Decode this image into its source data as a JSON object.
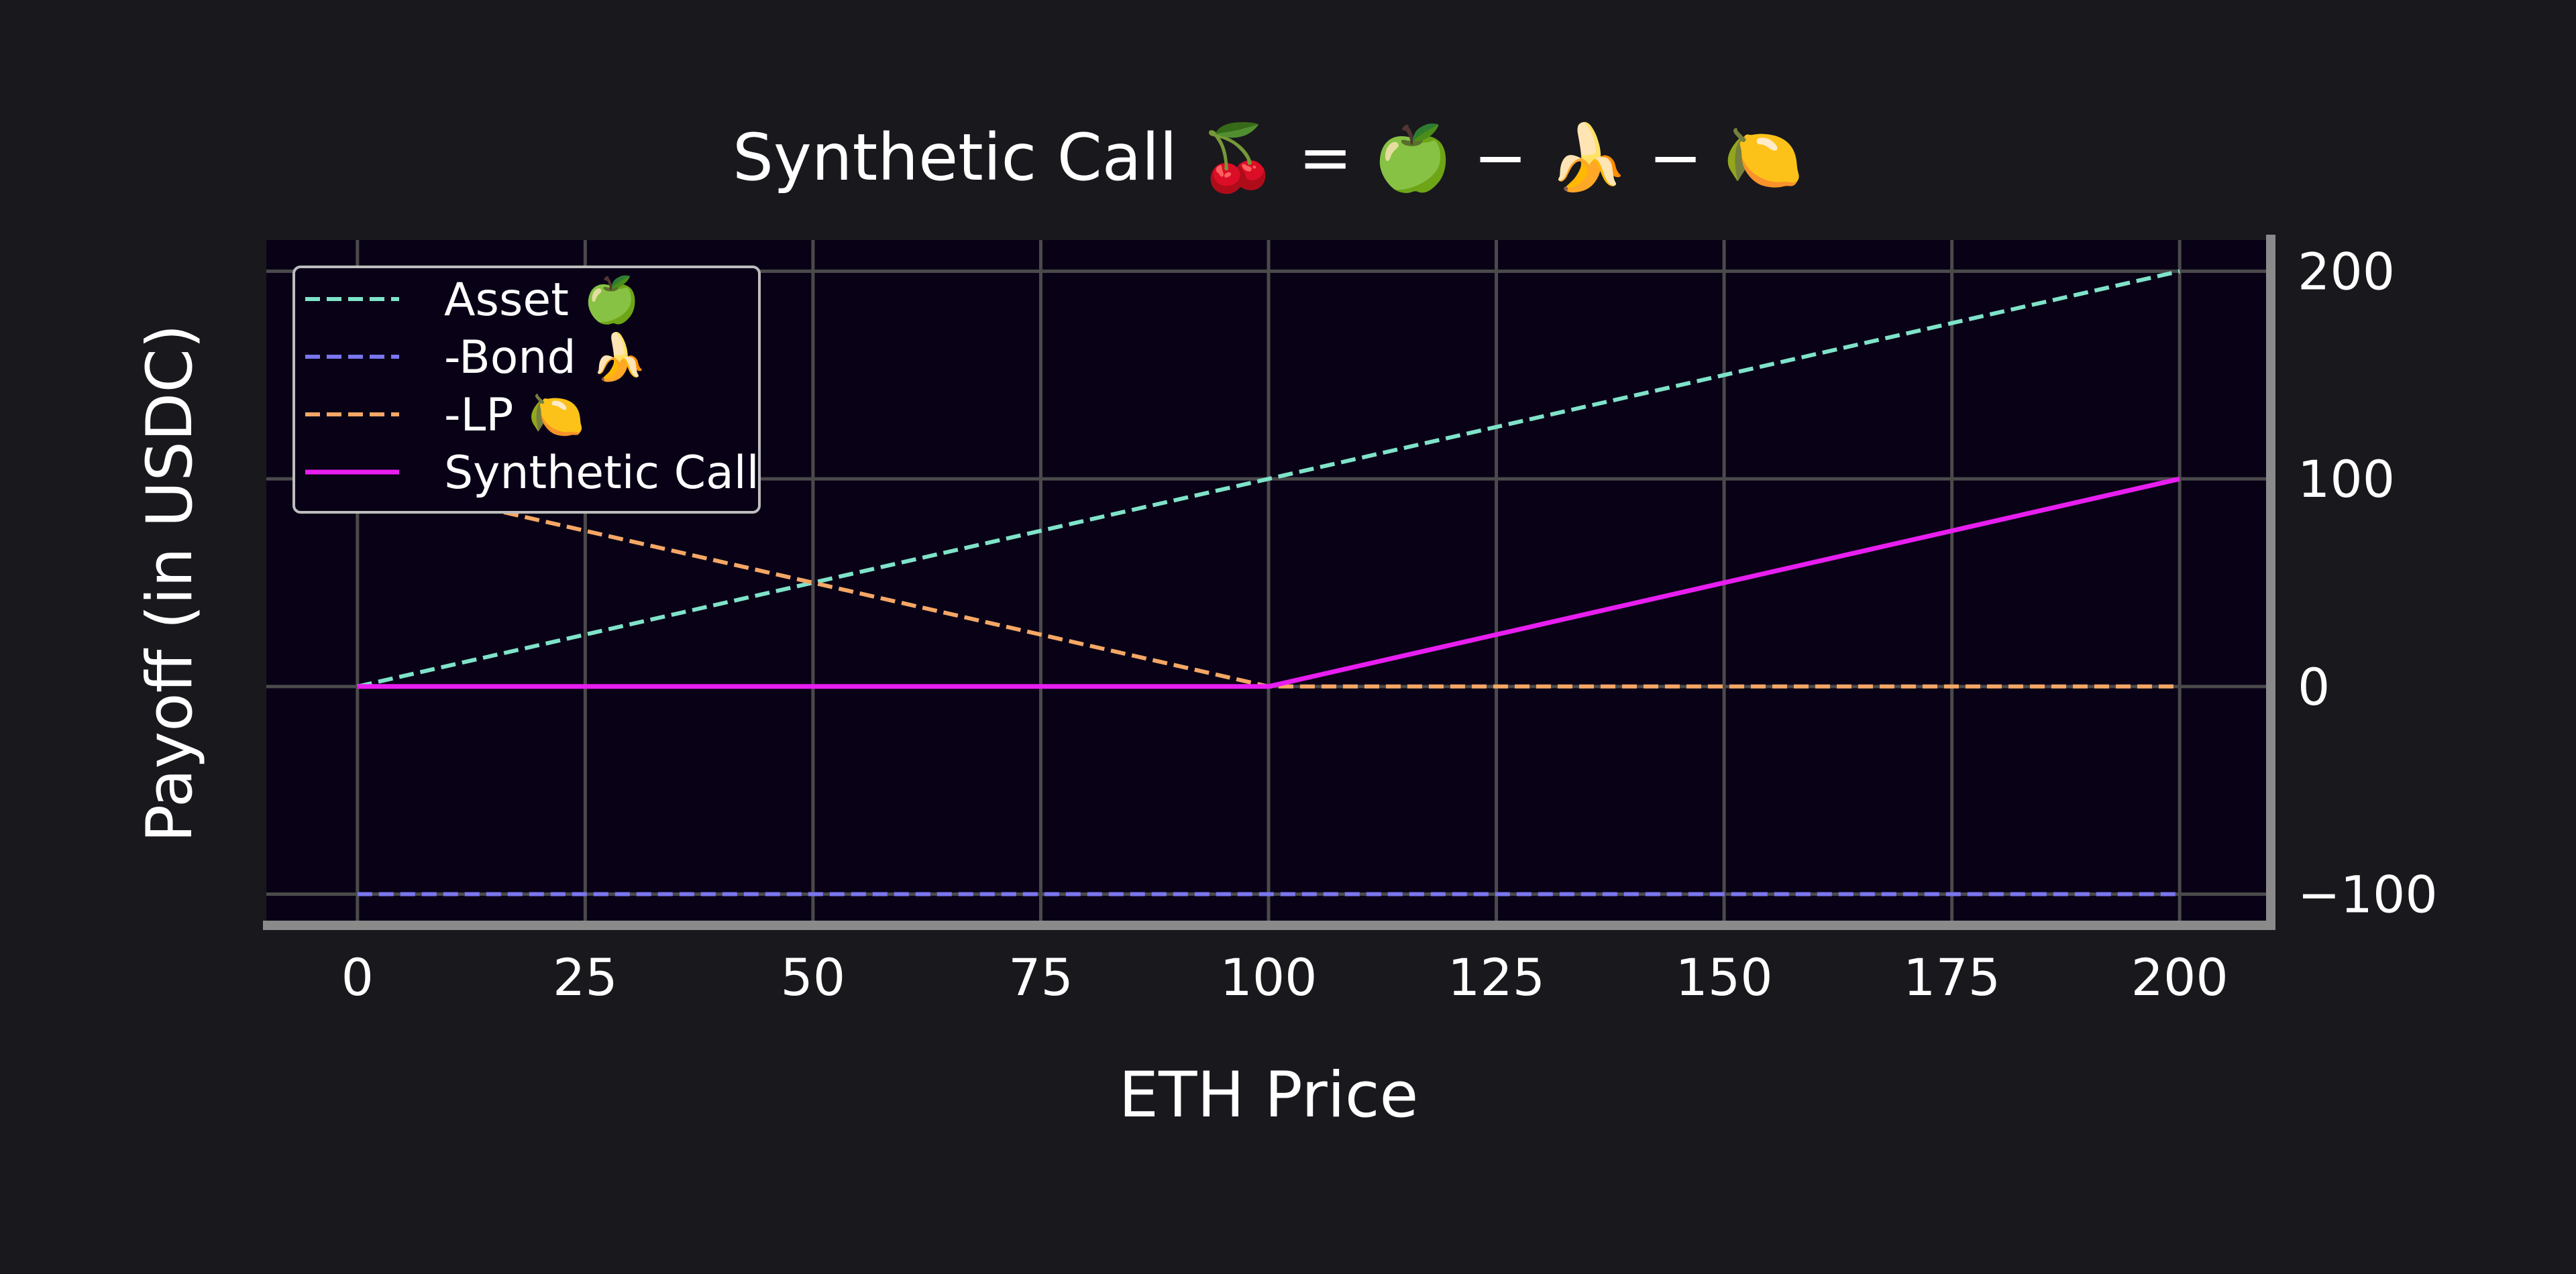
{
  "chart_data": {
    "type": "line",
    "title": "Synthetic Call 🍒 = 🍏 − 🍌 − 🍋",
    "xlabel": "ETH Price",
    "ylabel": "Payoff (in USDC)",
    "xlim": [
      -10,
      210
    ],
    "ylim": [
      -115,
      215
    ],
    "xticks": [
      0,
      25,
      50,
      75,
      100,
      125,
      150,
      175,
      200
    ],
    "yticks": [
      -100,
      0,
      100,
      200
    ],
    "y_axis_side": "right",
    "grid": true,
    "legend_position": "top-left",
    "series": [
      {
        "name": "Asset 🍏",
        "color": "#7fe3c9",
        "style": "dashed",
        "x": [
          0,
          200
        ],
        "y": [
          0,
          200
        ]
      },
      {
        "name": "-Bond 🍌",
        "color": "#7a76ee",
        "style": "dashed",
        "x": [
          0,
          200
        ],
        "y": [
          -100,
          -100
        ]
      },
      {
        "name": "-LP 🍋",
        "color": "#f5a765",
        "style": "dashed",
        "x": [
          0,
          100,
          200
        ],
        "y": [
          100,
          0,
          0
        ]
      },
      {
        "name": "Synthetic Call",
        "color": "#e81ef0",
        "style": "solid",
        "x": [
          0,
          100,
          200
        ],
        "y": [
          0,
          0,
          100
        ]
      }
    ]
  },
  "colors": {
    "page_background": "#19181d",
    "plot_background": "#090217",
    "grid": "#4a4a4a",
    "spine": "#8a8a8a",
    "legend_border": "#bdbdbd"
  }
}
